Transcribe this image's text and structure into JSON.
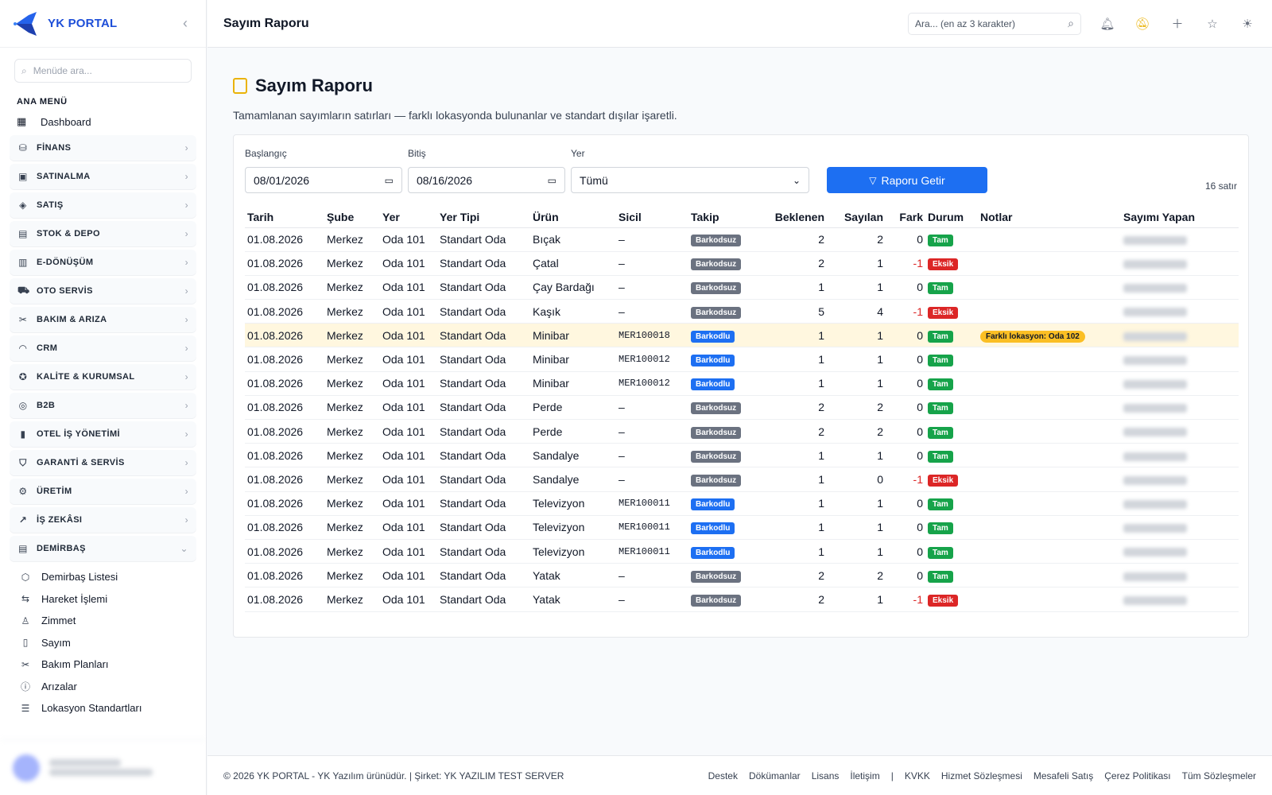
{
  "brand": {
    "name": "YK PORTAL"
  },
  "sidebar": {
    "search_placeholder": "Menüde ara...",
    "section_title": "ANA MENÜ",
    "dashboard": "Dashboard",
    "groups": [
      {
        "label": "FİNANS",
        "icon": "finance-icon"
      },
      {
        "label": "SATINALMA",
        "icon": "bag-icon"
      },
      {
        "label": "SATIŞ",
        "icon": "tag-icon"
      },
      {
        "label": "STOK & DEPO",
        "icon": "box-icon"
      },
      {
        "label": "E-DÖNÜŞÜM",
        "icon": "document-icon"
      },
      {
        "label": "OTO SERVİS",
        "icon": "car-icon"
      },
      {
        "label": "BAKIM & ARIZA",
        "icon": "tools-icon"
      },
      {
        "label": "CRM",
        "icon": "headset-icon"
      },
      {
        "label": "KALİTE & KURUMSAL",
        "icon": "badge-icon"
      },
      {
        "label": "B2B",
        "icon": "globe-icon"
      },
      {
        "label": "OTEL İŞ YÖNETİMİ",
        "icon": "building-icon"
      },
      {
        "label": "GARANTİ & SERVİS",
        "icon": "shield-icon"
      },
      {
        "label": "ÜRETİM",
        "icon": "gear-icon"
      },
      {
        "label": "İŞ ZEKÂSI",
        "icon": "chart-icon"
      },
      {
        "label": "DEMİRBAŞ",
        "icon": "box-icon"
      }
    ],
    "sub_items": [
      {
        "label": "Demirbaş Listesi",
        "icon": "cube-icon"
      },
      {
        "label": "Hareket İşlemi",
        "icon": "arrows-icon"
      },
      {
        "label": "Zimmet",
        "icon": "user-icon"
      },
      {
        "label": "Sayım",
        "icon": "clipboard-icon"
      },
      {
        "label": "Bakım Planları",
        "icon": "tools-icon"
      },
      {
        "label": "Arızalar",
        "icon": "alert-icon"
      },
      {
        "label": "Lokasyon Standartları",
        "icon": "list-icon"
      }
    ]
  },
  "header": {
    "title": "Sayım Raporu",
    "search_placeholder": "Ara... (en az 3 karakter)"
  },
  "page": {
    "title": "Sayım Raporu",
    "description": "Tamamlanan sayımların satırları — farklı lokasyonda bulunanlar ve standart dışılar işaretli."
  },
  "filters": {
    "start_label": "Başlangıç",
    "start_value": "08/01/2026",
    "end_label": "Bitiş",
    "end_value": "08/16/2026",
    "place_label": "Yer",
    "place_value": "Tümü",
    "submit_label": "Raporu Getir",
    "row_count": "16 satır"
  },
  "table": {
    "columns": [
      "Tarih",
      "Şube",
      "Yer",
      "Yer Tipi",
      "Ürün",
      "Sicil",
      "Takip",
      "Beklenen",
      "Sayılan",
      "Fark",
      "Durum",
      "Notlar",
      "Sayımı Yapan"
    ],
    "rows": [
      {
        "tarih": "01.08.2026",
        "sube": "Merkez",
        "yer": "Oda 101",
        "yer_tipi": "Standart Oda",
        "urun": "Bıçak",
        "sicil": "–",
        "takip": "Barkodsuz",
        "beklenen": "2",
        "sayilan": "2",
        "fark": "0",
        "durum": "Tam",
        "notlar": ""
      },
      {
        "tarih": "01.08.2026",
        "sube": "Merkez",
        "yer": "Oda 101",
        "yer_tipi": "Standart Oda",
        "urun": "Çatal",
        "sicil": "–",
        "takip": "Barkodsuz",
        "beklenen": "2",
        "sayilan": "1",
        "fark": "-1",
        "durum": "Eksik",
        "notlar": ""
      },
      {
        "tarih": "01.08.2026",
        "sube": "Merkez",
        "yer": "Oda 101",
        "yer_tipi": "Standart Oda",
        "urun": "Çay Bardağı",
        "sicil": "–",
        "takip": "Barkodsuz",
        "beklenen": "1",
        "sayilan": "1",
        "fark": "0",
        "durum": "Tam",
        "notlar": ""
      },
      {
        "tarih": "01.08.2026",
        "sube": "Merkez",
        "yer": "Oda 101",
        "yer_tipi": "Standart Oda",
        "urun": "Kaşık",
        "sicil": "–",
        "takip": "Barkodsuz",
        "beklenen": "5",
        "sayilan": "4",
        "fark": "-1",
        "durum": "Eksik",
        "notlar": ""
      },
      {
        "tarih": "01.08.2026",
        "sube": "Merkez",
        "yer": "Oda 101",
        "yer_tipi": "Standart Oda",
        "urun": "Minibar",
        "sicil": "MER100018",
        "takip": "Barkodlu",
        "beklenen": "1",
        "sayilan": "1",
        "fark": "0",
        "durum": "Tam",
        "notlar": "Farklı lokasyon: Oda 102",
        "highlight": true
      },
      {
        "tarih": "01.08.2026",
        "sube": "Merkez",
        "yer": "Oda 101",
        "yer_tipi": "Standart Oda",
        "urun": "Minibar",
        "sicil": "MER100012",
        "takip": "Barkodlu",
        "beklenen": "1",
        "sayilan": "1",
        "fark": "0",
        "durum": "Tam",
        "notlar": ""
      },
      {
        "tarih": "01.08.2026",
        "sube": "Merkez",
        "yer": "Oda 101",
        "yer_tipi": "Standart Oda",
        "urun": "Minibar",
        "sicil": "MER100012",
        "takip": "Barkodlu",
        "beklenen": "1",
        "sayilan": "1",
        "fark": "0",
        "durum": "Tam",
        "notlar": ""
      },
      {
        "tarih": "01.08.2026",
        "sube": "Merkez",
        "yer": "Oda 101",
        "yer_tipi": "Standart Oda",
        "urun": "Perde",
        "sicil": "–",
        "takip": "Barkodsuz",
        "beklenen": "2",
        "sayilan": "2",
        "fark": "0",
        "durum": "Tam",
        "notlar": ""
      },
      {
        "tarih": "01.08.2026",
        "sube": "Merkez",
        "yer": "Oda 101",
        "yer_tipi": "Standart Oda",
        "urun": "Perde",
        "sicil": "–",
        "takip": "Barkodsuz",
        "beklenen": "2",
        "sayilan": "2",
        "fark": "0",
        "durum": "Tam",
        "notlar": ""
      },
      {
        "tarih": "01.08.2026",
        "sube": "Merkez",
        "yer": "Oda 101",
        "yer_tipi": "Standart Oda",
        "urun": "Sandalye",
        "sicil": "–",
        "takip": "Barkodsuz",
        "beklenen": "1",
        "sayilan": "1",
        "fark": "0",
        "durum": "Tam",
        "notlar": ""
      },
      {
        "tarih": "01.08.2026",
        "sube": "Merkez",
        "yer": "Oda 101",
        "yer_tipi": "Standart Oda",
        "urun": "Sandalye",
        "sicil": "–",
        "takip": "Barkodsuz",
        "beklenen": "1",
        "sayilan": "0",
        "fark": "-1",
        "durum": "Eksik",
        "notlar": ""
      },
      {
        "tarih": "01.08.2026",
        "sube": "Merkez",
        "yer": "Oda 101",
        "yer_tipi": "Standart Oda",
        "urun": "Televizyon",
        "sicil": "MER100011",
        "takip": "Barkodlu",
        "beklenen": "1",
        "sayilan": "1",
        "fark": "0",
        "durum": "Tam",
        "notlar": ""
      },
      {
        "tarih": "01.08.2026",
        "sube": "Merkez",
        "yer": "Oda 101",
        "yer_tipi": "Standart Oda",
        "urun": "Televizyon",
        "sicil": "MER100011",
        "takip": "Barkodlu",
        "beklenen": "1",
        "sayilan": "1",
        "fark": "0",
        "durum": "Tam",
        "notlar": ""
      },
      {
        "tarih": "01.08.2026",
        "sube": "Merkez",
        "yer": "Oda 101",
        "yer_tipi": "Standart Oda",
        "urun": "Televizyon",
        "sicil": "MER100011",
        "takip": "Barkodlu",
        "beklenen": "1",
        "sayilan": "1",
        "fark": "0",
        "durum": "Tam",
        "notlar": ""
      },
      {
        "tarih": "01.08.2026",
        "sube": "Merkez",
        "yer": "Oda 101",
        "yer_tipi": "Standart Oda",
        "urun": "Yatak",
        "sicil": "–",
        "takip": "Barkodsuz",
        "beklenen": "2",
        "sayilan": "2",
        "fark": "0",
        "durum": "Tam",
        "notlar": ""
      },
      {
        "tarih": "01.08.2026",
        "sube": "Merkez",
        "yer": "Oda 101",
        "yer_tipi": "Standart Oda",
        "urun": "Yatak",
        "sicil": "–",
        "takip": "Barkodsuz",
        "beklenen": "2",
        "sayilan": "1",
        "fark": "-1",
        "durum": "Eksik",
        "notlar": ""
      }
    ]
  },
  "footer": {
    "copyright": "© 2026 YK PORTAL - YK Yazılım ürünüdür. | Şirket: YK YAZILIM TEST SERVER",
    "links_a": [
      "Destek",
      "Dökümanlar",
      "Lisans",
      "İletişim"
    ],
    "separator": "|",
    "links_b": [
      "KVKK",
      "Hizmet Sözleşmesi",
      "Mesafeli Satış",
      "Çerez Politikası",
      "Tüm Sözleşmeler"
    ]
  },
  "colors": {
    "primary": "#1d6ff2",
    "success": "#16a34a",
    "danger": "#dc2626",
    "neutral": "#6b7280",
    "warning": "#fbbf24",
    "highlight_row": "#fff7df"
  }
}
